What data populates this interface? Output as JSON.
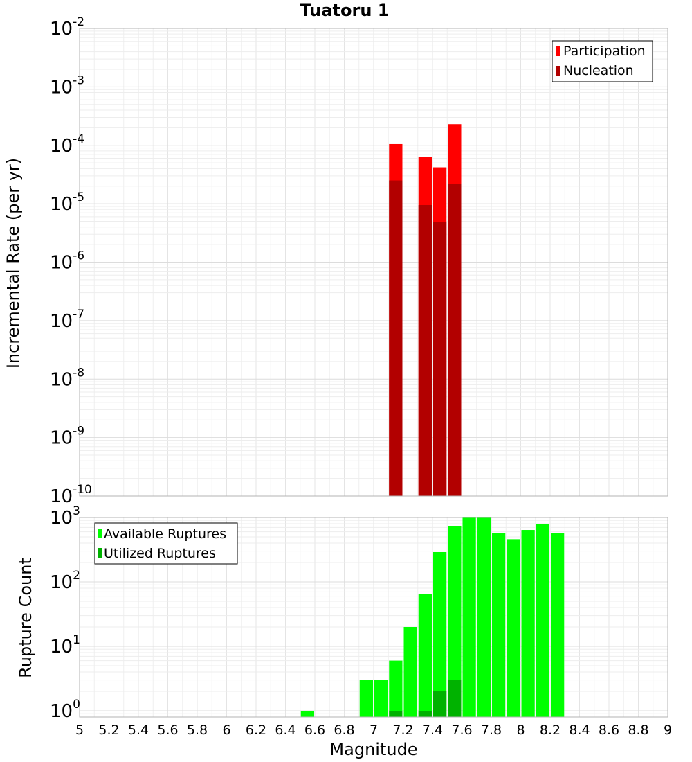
{
  "chart_data": [
    {
      "type": "bar",
      "title": "Tuatoru 1",
      "xlabel": "",
      "ylabel": "Incremental Rate (per yr)",
      "y_scale": "log",
      "ylim": [
        1e-10,
        0.01
      ],
      "xlim": [
        5,
        9
      ],
      "grid": true,
      "legend_position": "top-right",
      "y_ticks": [
        {
          "base": "10",
          "exp": "-10"
        },
        {
          "base": "10",
          "exp": "-9"
        },
        {
          "base": "10",
          "exp": "-8"
        },
        {
          "base": "10",
          "exp": "-7"
        },
        {
          "base": "10",
          "exp": "-6"
        },
        {
          "base": "10",
          "exp": "-5"
        },
        {
          "base": "10",
          "exp": "-4"
        },
        {
          "base": "10",
          "exp": "-3"
        },
        {
          "base": "10",
          "exp": "-2"
        }
      ],
      "series": [
        {
          "name": "Participation",
          "color": "#ff0000",
          "x": [
            7.15,
            7.35,
            7.45,
            7.55
          ],
          "values": [
            0.000105,
            6.3e-05,
            4.2e-05,
            0.00023
          ]
        },
        {
          "name": "Nucleation",
          "color": "#b20000",
          "x": [
            7.15,
            7.35,
            7.45,
            7.55
          ],
          "values": [
            2.5e-05,
            9.5e-06,
            4.8e-06,
            2.2e-05
          ]
        }
      ]
    },
    {
      "type": "bar",
      "title": "",
      "xlabel": "Magnitude",
      "ylabel": "Rupture Count",
      "y_scale": "log",
      "ylim": [
        0.8,
        1000
      ],
      "xlim": [
        5,
        9
      ],
      "grid": true,
      "legend_position": "top-left",
      "x_ticks": [
        "5",
        "5.2",
        "5.4",
        "5.6",
        "5.8",
        "6",
        "6.2",
        "6.4",
        "6.6",
        "6.8",
        "7",
        "7.2",
        "7.4",
        "7.6",
        "7.8",
        "8",
        "8.2",
        "8.4",
        "8.6",
        "8.8",
        "9"
      ],
      "y_ticks": [
        {
          "base": "10",
          "exp": "0"
        },
        {
          "base": "10",
          "exp": "1"
        },
        {
          "base": "10",
          "exp": "2"
        },
        {
          "base": "10",
          "exp": "3"
        }
      ],
      "series": [
        {
          "name": "Available Ruptures",
          "color": "#00ff00",
          "x": [
            6.55,
            6.95,
            7.05,
            7.15,
            7.25,
            7.35,
            7.45,
            7.55,
            7.65,
            7.75,
            7.85,
            7.95,
            8.05,
            8.15,
            8.25
          ],
          "values": [
            1,
            3,
            3,
            6,
            20,
            65,
            290,
            740,
            1000,
            990,
            580,
            460,
            640,
            790,
            570
          ]
        },
        {
          "name": "Utilized Ruptures",
          "color": "#00b200",
          "x": [
            7.15,
            7.35,
            7.45,
            7.55
          ],
          "values": [
            1,
            1,
            2,
            3
          ]
        }
      ]
    }
  ]
}
